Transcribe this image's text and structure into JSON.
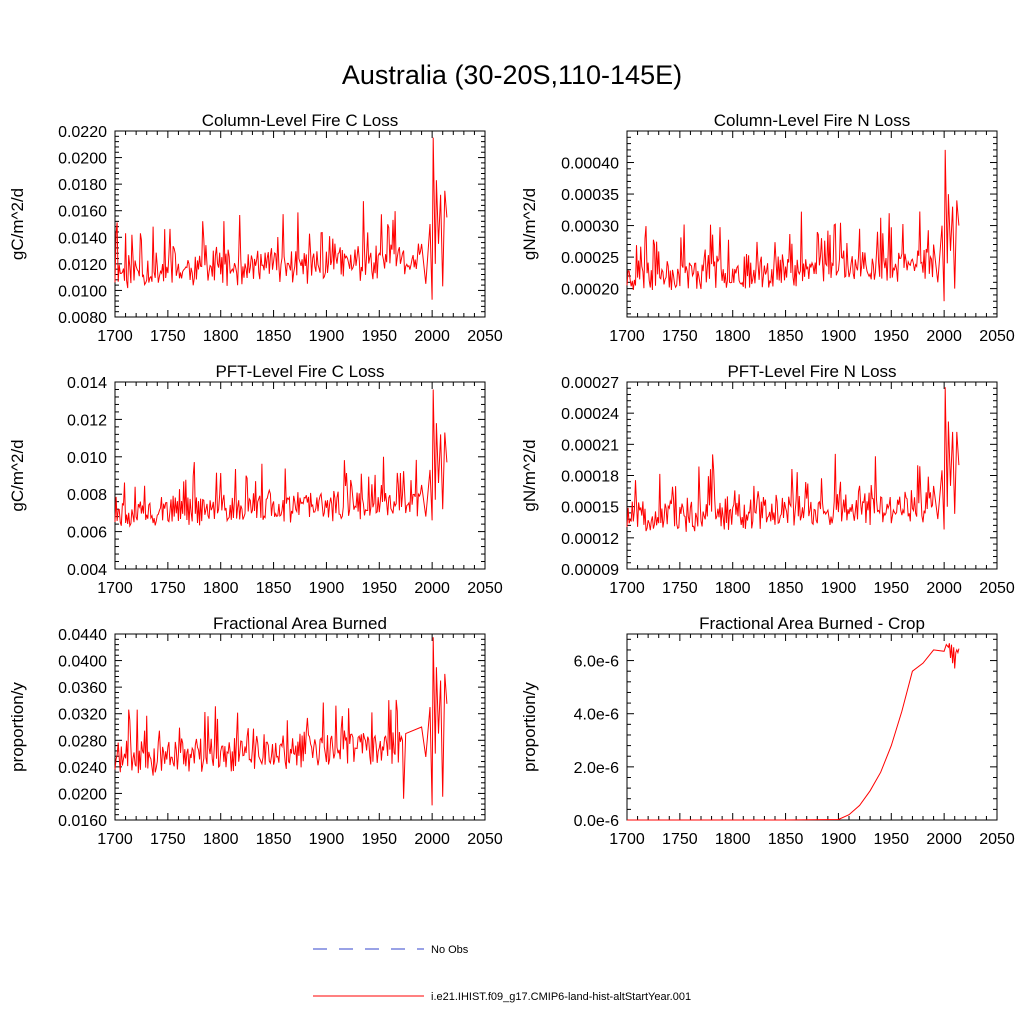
{
  "figure": {
    "title": "Australia (30-20S,110-145E)",
    "legend": [
      {
        "label": "No Obs",
        "color": "#3344cc",
        "style": "dashed"
      },
      {
        "label": "i.e21.IHIST.f09_g17.CMIP6-land-hist-altStartYear.001",
        "color": "#ff0000",
        "style": "solid"
      }
    ]
  },
  "chart_data": [
    {
      "type": "line",
      "title": "Column-Level Fire C Loss",
      "ylabel": "gC/m^2/d",
      "xlim": [
        1700,
        2050
      ],
      "ylim": [
        0.008,
        0.022
      ],
      "xticks": [
        "1700",
        "1750",
        "1800",
        "1850",
        "1900",
        "1950",
        "2000",
        "2050"
      ],
      "yticks": [
        "0.0080",
        "0.0100",
        "0.0120",
        "0.0140",
        "0.0160",
        "0.0180",
        "0.0200",
        "0.0220"
      ],
      "ytick_values": [
        0.008,
        0.01,
        0.012,
        0.014,
        0.016,
        0.018,
        0.02,
        0.022
      ],
      "color": "#ff0000",
      "series": {
        "kind": "noisy",
        "start": 1700,
        "end": 2014,
        "base": 0.0116,
        "trend": 0.0008,
        "amp": 0.0015,
        "spike": 0.0035,
        "seed": 11,
        "tail": [
          [
            1990,
            0.0135
          ],
          [
            1994,
            0.0105
          ],
          [
            1998,
            0.015
          ],
          [
            2000,
            0.0093
          ],
          [
            2001,
            0.0215
          ],
          [
            2003,
            0.012
          ],
          [
            2004,
            0.0183
          ],
          [
            2006,
            0.0135
          ],
          [
            2008,
            0.0172
          ],
          [
            2010,
            0.0103
          ],
          [
            2012,
            0.0175
          ],
          [
            2014,
            0.0155
          ]
        ]
      }
    },
    {
      "type": "line",
      "title": "Column-Level Fire N Loss",
      "ylabel": "gN/m^2/d",
      "xlim": [
        1700,
        2050
      ],
      "ylim": [
        0.000155,
        0.00045
      ],
      "xticks": [
        "1700",
        "1750",
        "1800",
        "1850",
        "1900",
        "1950",
        "2000",
        "2050"
      ],
      "yticks": [
        "0.00020",
        "0.00025",
        "0.00030",
        "0.00035",
        "0.00040"
      ],
      "ytick_values": [
        0.0002,
        0.00025,
        0.0003,
        0.00035,
        0.0004
      ],
      "color": "#ff0000",
      "series": {
        "kind": "noisy",
        "start": 1700,
        "end": 2014,
        "base": 0.000225,
        "trend": 1.8e-05,
        "amp": 3e-05,
        "spike": 7.5e-05,
        "seed": 23,
        "tail": [
          [
            1990,
            0.00027
          ],
          [
            1994,
            0.00021
          ],
          [
            1998,
            0.0003
          ],
          [
            2000,
            0.00018
          ],
          [
            2001,
            0.00042
          ],
          [
            2003,
            0.00024
          ],
          [
            2004,
            0.00035
          ],
          [
            2006,
            0.00026
          ],
          [
            2008,
            0.00033
          ],
          [
            2010,
            0.0002
          ],
          [
            2012,
            0.00034
          ],
          [
            2014,
            0.0003
          ]
        ]
      }
    },
    {
      "type": "line",
      "title": "PFT-Level Fire C Loss",
      "ylabel": "gC/m^2/d",
      "xlim": [
        1700,
        2050
      ],
      "ylim": [
        0.004,
        0.014
      ],
      "xticks": [
        "1700",
        "1750",
        "1800",
        "1850",
        "1900",
        "1950",
        "2000",
        "2050"
      ],
      "yticks": [
        "0.004",
        "0.006",
        "0.008",
        "0.010",
        "0.012",
        "0.014"
      ],
      "ytick_values": [
        0.004,
        0.006,
        0.008,
        0.01,
        0.012,
        0.014
      ],
      "color": "#ff0000",
      "series": {
        "kind": "noisy",
        "start": 1700,
        "end": 2014,
        "base": 0.0071,
        "trend": 0.0006,
        "amp": 0.0009,
        "spike": 0.0022,
        "seed": 37,
        "tail": [
          [
            1990,
            0.0085
          ],
          [
            1994,
            0.0068
          ],
          [
            1998,
            0.0093
          ],
          [
            2000,
            0.0066
          ],
          [
            2001,
            0.0136
          ],
          [
            2003,
            0.0077
          ],
          [
            2004,
            0.0118
          ],
          [
            2006,
            0.0086
          ],
          [
            2008,
            0.0112
          ],
          [
            2010,
            0.0072
          ],
          [
            2012,
            0.0113
          ],
          [
            2014,
            0.0097
          ]
        ]
      }
    },
    {
      "type": "line",
      "title": "PFT-Level Fire N Loss",
      "ylabel": "gN/m^2/d",
      "xlim": [
        1700,
        2050
      ],
      "ylim": [
        9e-05,
        0.00027
      ],
      "xticks": [
        "1700",
        "1750",
        "1800",
        "1850",
        "1900",
        "1950",
        "2000",
        "2050"
      ],
      "yticks": [
        "0.00009",
        "0.00012",
        "0.00015",
        "0.00018",
        "0.00021",
        "0.00024",
        "0.00027"
      ],
      "ytick_values": [
        9e-05,
        0.00012,
        0.00015,
        0.00018,
        0.00021,
        0.00024,
        0.00027
      ],
      "color": "#ff0000",
      "series": {
        "kind": "noisy",
        "start": 1700,
        "end": 2014,
        "base": 0.000142,
        "trend": 1.2e-05,
        "amp": 1.8e-05,
        "spike": 4.5e-05,
        "seed": 51,
        "tail": [
          [
            1990,
            0.00017
          ],
          [
            1994,
            0.000138
          ],
          [
            1998,
            0.000185
          ],
          [
            2000,
            0.000128
          ],
          [
            2001,
            0.000265
          ],
          [
            2003,
            0.00015
          ],
          [
            2004,
            0.000232
          ],
          [
            2006,
            0.00017
          ],
          [
            2008,
            0.000222
          ],
          [
            2010,
            0.000143
          ],
          [
            2012,
            0.000222
          ],
          [
            2014,
            0.00019
          ]
        ]
      }
    },
    {
      "type": "line",
      "title": "Fractional Area Burned",
      "ylabel": "proportion/y",
      "xlim": [
        1700,
        2050
      ],
      "ylim": [
        0.016,
        0.044
      ],
      "xticks": [
        "1700",
        "1750",
        "1800",
        "1850",
        "1900",
        "1950",
        "2000",
        "2050"
      ],
      "yticks": [
        "0.0160",
        "0.0200",
        "0.0240",
        "0.0280",
        "0.0320",
        "0.0360",
        "0.0400",
        "0.0440"
      ],
      "ytick_values": [
        0.016,
        0.02,
        0.024,
        0.028,
        0.032,
        0.036,
        0.04,
        0.044
      ],
      "color": "#ff0000",
      "series": {
        "kind": "noisy",
        "start": 1700,
        "end": 2014,
        "base": 0.0255,
        "trend": 0.0025,
        "amp": 0.003,
        "spike": 0.007,
        "seed": 71,
        "tail": [
          [
            1972,
            0.028
          ],
          [
            1973,
            0.0192
          ],
          [
            1975,
            0.029
          ],
          [
            1990,
            0.03
          ],
          [
            1994,
            0.0255
          ],
          [
            1998,
            0.033
          ],
          [
            2000,
            0.0182
          ],
          [
            2001,
            0.0435
          ],
          [
            2003,
            0.026
          ],
          [
            2004,
            0.039
          ],
          [
            2006,
            0.029
          ],
          [
            2008,
            0.037
          ],
          [
            2010,
            0.0195
          ],
          [
            2012,
            0.038
          ],
          [
            2014,
            0.0335
          ]
        ]
      }
    },
    {
      "type": "line",
      "title": "Fractional Area Burned - Crop",
      "ylabel": "proportion/y",
      "xlim": [
        1700,
        2050
      ],
      "ylim": [
        0,
        7e-06
      ],
      "xticks": [
        "1700",
        "1750",
        "1800",
        "1850",
        "1900",
        "1950",
        "2000",
        "2050"
      ],
      "yticks": [
        "0.0e-6",
        "2.0e-6",
        "4.0e-6",
        "6.0e-6"
      ],
      "ytick_values": [
        0,
        2e-06,
        4e-06,
        6e-06
      ],
      "color": "#ff0000",
      "series": {
        "kind": "points",
        "points": [
          [
            1700,
            0
          ],
          [
            1850,
            0
          ],
          [
            1900,
            2e-08
          ],
          [
            1910,
            2e-07
          ],
          [
            1920,
            5.5e-07
          ],
          [
            1930,
            1.1e-06
          ],
          [
            1940,
            1.8e-06
          ],
          [
            1950,
            2.8e-06
          ],
          [
            1960,
            4.1e-06
          ],
          [
            1970,
            5.6e-06
          ],
          [
            1980,
            5.9e-06
          ],
          [
            1990,
            6.4e-06
          ],
          [
            2000,
            6.35e-06
          ],
          [
            2002,
            6.6e-06
          ],
          [
            2004,
            6.5e-06
          ],
          [
            2005,
            6.65e-06
          ],
          [
            2006,
            6.1e-06
          ],
          [
            2007,
            6.6e-06
          ],
          [
            2008,
            5.9e-06
          ],
          [
            2009,
            6.5e-06
          ],
          [
            2010,
            5.7e-06
          ],
          [
            2011,
            6.3e-06
          ],
          [
            2012,
            6.4e-06
          ],
          [
            2013,
            6.3e-06
          ],
          [
            2014,
            6.45e-06
          ]
        ]
      }
    }
  ]
}
